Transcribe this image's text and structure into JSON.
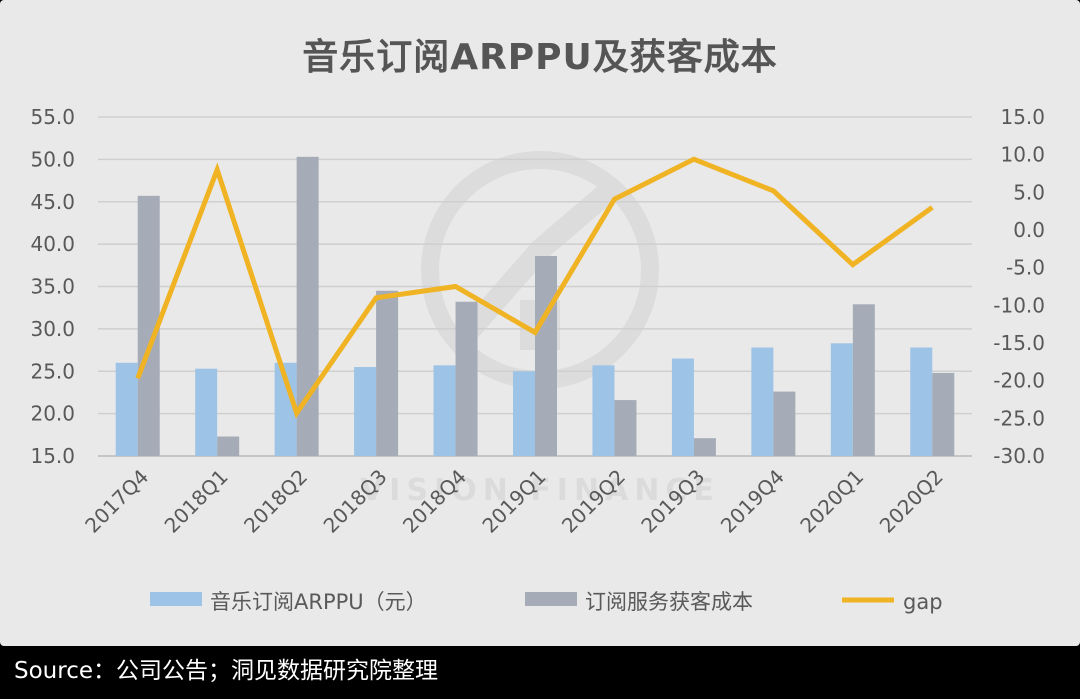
{
  "title": "音乐订阅ARPPU及获客成本",
  "source": "Source：公司公告；洞见数据研究院整理",
  "chart_data": {
    "type": "bar",
    "categories": [
      "2017Q4",
      "2018Q1",
      "2018Q2",
      "2018Q3",
      "2018Q4",
      "2019Q1",
      "2019Q2",
      "2019Q3",
      "2019Q4",
      "2020Q1",
      "2020Q2"
    ],
    "series": [
      {
        "name": "音乐订阅ARPPU（元）",
        "type": "bar",
        "axis": "left",
        "color": "#9dc3e6",
        "values": [
          26.0,
          25.3,
          26.0,
          25.5,
          25.7,
          25.0,
          25.7,
          26.5,
          27.8,
          28.3,
          27.8
        ]
      },
      {
        "name": "订阅服务获客成本",
        "type": "bar",
        "axis": "left",
        "color": "#a5acb8",
        "values": [
          45.7,
          17.3,
          50.3,
          34.5,
          33.2,
          38.6,
          21.6,
          17.1,
          22.6,
          32.9,
          24.8
        ]
      },
      {
        "name": "gap",
        "type": "line",
        "axis": "right",
        "color": "#f0b323",
        "values": [
          -19.7,
          8.0,
          -24.3,
          -9.0,
          -7.5,
          -13.6,
          4.1,
          9.4,
          5.2,
          -4.6,
          3.0
        ]
      }
    ],
    "left_axis": {
      "min": 15.0,
      "max": 55.0,
      "ticks": [
        "15.0",
        "20.0",
        "25.0",
        "30.0",
        "35.0",
        "40.0",
        "45.0",
        "50.0",
        "55.0"
      ]
    },
    "right_axis": {
      "min": -30.0,
      "max": 15.0,
      "ticks": [
        "-30.0",
        "-25.0",
        "-20.0",
        "-15.0",
        "-10.0",
        "-5.0",
        "0.0",
        "5.0",
        "10.0",
        "15.0"
      ]
    },
    "grid": true,
    "legend_position": "bottom"
  }
}
